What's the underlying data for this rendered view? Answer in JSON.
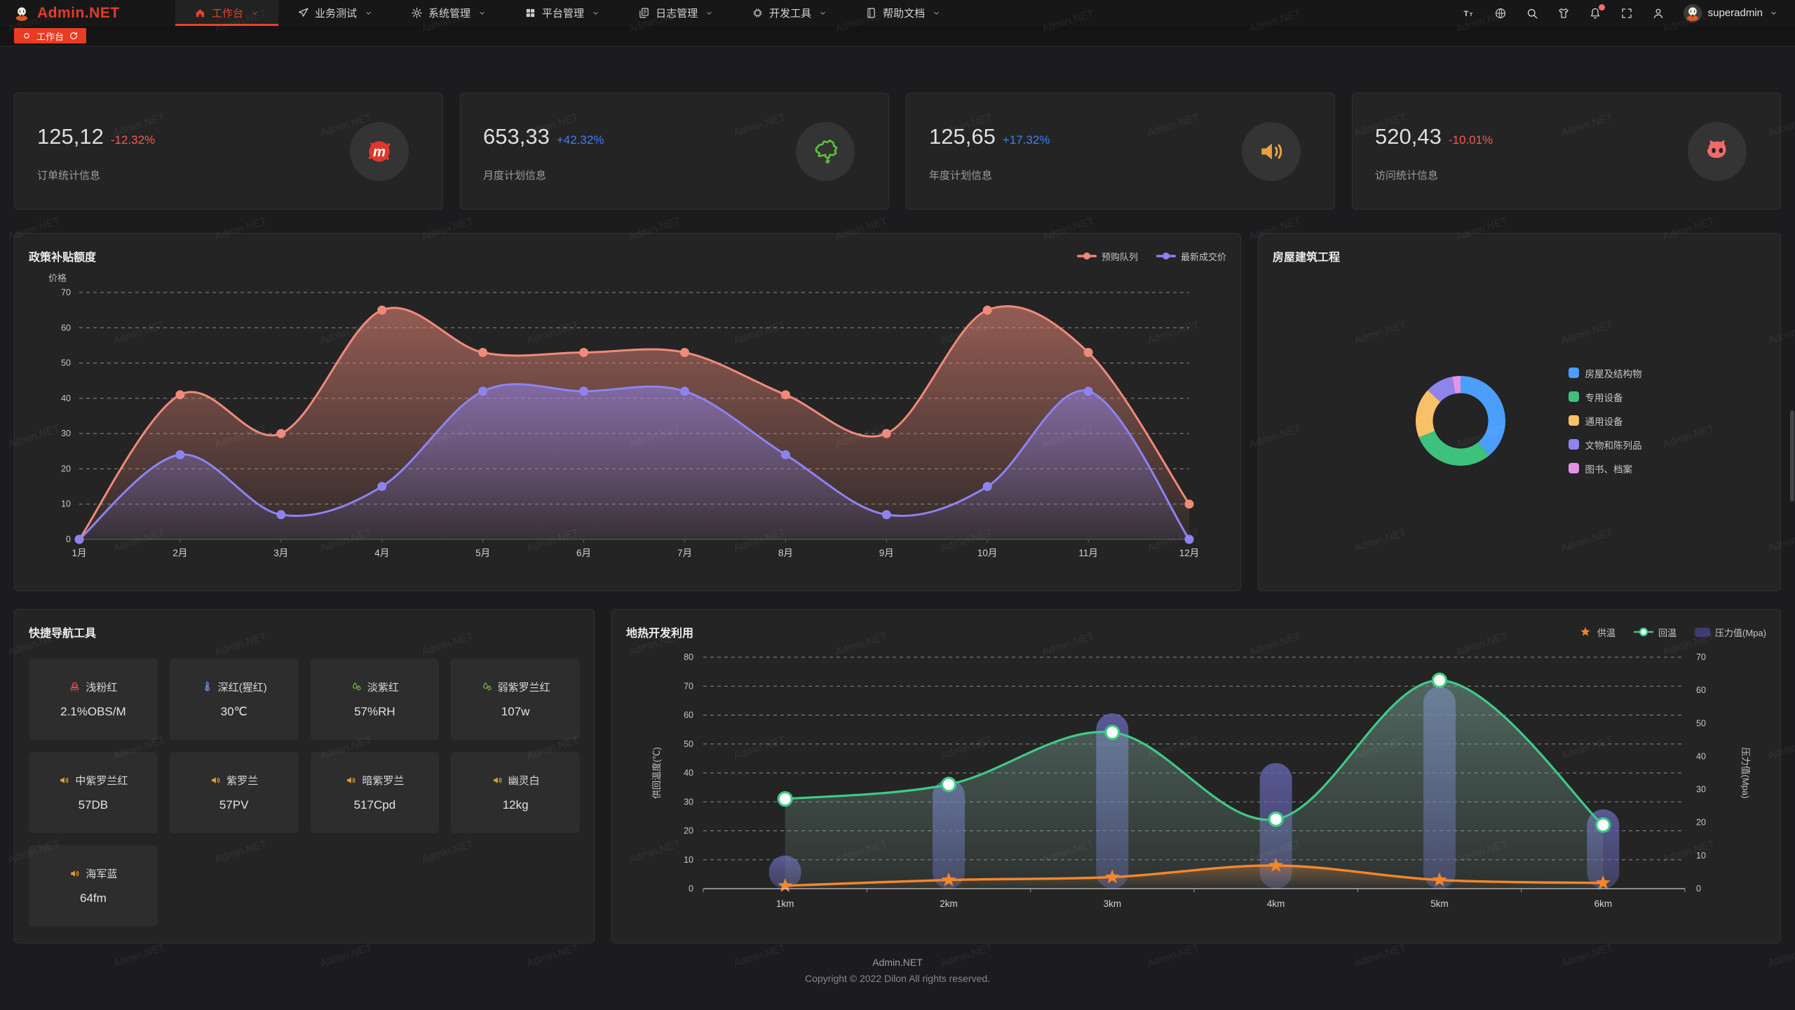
{
  "header": {
    "logo_text": "Admin.NET",
    "menu": [
      {
        "key": "workbench",
        "label": "工作台",
        "icon": "home-icon",
        "active": true
      },
      {
        "key": "business-test",
        "label": "业务测试",
        "icon": "send-icon",
        "active": false
      },
      {
        "key": "system-mgmt",
        "label": "系统管理",
        "icon": "gear-icon",
        "active": false
      },
      {
        "key": "platform-mgmt",
        "label": "平台管理",
        "icon": "grid-icon",
        "active": false
      },
      {
        "key": "log-mgmt",
        "label": "日志管理",
        "icon": "log-icon",
        "active": false
      },
      {
        "key": "dev-tools",
        "label": "开发工具",
        "icon": "chip-icon",
        "active": false
      },
      {
        "key": "help-docs",
        "label": "帮助文档",
        "icon": "book-icon",
        "active": false
      }
    ],
    "tools": [
      {
        "name": "font-size-icon",
        "badge": false
      },
      {
        "name": "language-icon",
        "badge": false
      },
      {
        "name": "search-icon",
        "badge": false
      },
      {
        "name": "theme-icon",
        "badge": false
      },
      {
        "name": "notification-icon",
        "badge": true
      },
      {
        "name": "fullscreen-icon",
        "badge": false
      },
      {
        "name": "user-icon",
        "badge": false
      }
    ],
    "username": "superadmin"
  },
  "tabbar": {
    "active_tab": "工作台"
  },
  "colors": {
    "accent": "#e8402c",
    "up": "#3f7ef7",
    "down": "#f25b52"
  },
  "stat_cards": [
    {
      "value": "125,12",
      "delta": "-12.32%",
      "trend": "down",
      "label": "订单统计信息",
      "icon": "meetup-icon",
      "icon_color": "#e0382c"
    },
    {
      "value": "653,33",
      "delta": "+42.32%",
      "trend": "up",
      "label": "月度计划信息",
      "icon": "china-map-icon",
      "icon_color": "#5cbf3c"
    },
    {
      "value": "125,65",
      "delta": "+17.32%",
      "trend": "up",
      "label": "年度计划信息",
      "icon": "speaker-icon",
      "icon_color": "#eaa23e"
    },
    {
      "value": "520,43",
      "delta": "-10.01%",
      "trend": "down",
      "label": "访问统计信息",
      "icon": "cat-icon",
      "icon_color": "#f06a6a"
    }
  ],
  "chart_data": [
    {
      "type": "line",
      "title": "政策补贴额度",
      "ylabel": "价格",
      "ylim": [
        0,
        70
      ],
      "y_ticks": [
        0,
        10,
        20,
        30,
        40,
        50,
        60,
        70
      ],
      "grid": "dashed",
      "legend_position": "top-right",
      "categories": [
        "1月",
        "2月",
        "3月",
        "4月",
        "5月",
        "6月",
        "7月",
        "8月",
        "9月",
        "10月",
        "11月",
        "12月"
      ],
      "series": [
        {
          "name": "预购队列",
          "color": "#f08a7a",
          "values": [
            0,
            41,
            30,
            65,
            53,
            53,
            53,
            41,
            30,
            65,
            53,
            10
          ]
        },
        {
          "name": "最新成交价",
          "color": "#8d83f0",
          "values": [
            0,
            24,
            7,
            15,
            42,
            42,
            42,
            24,
            7,
            15,
            42,
            0
          ]
        }
      ]
    },
    {
      "type": "pie",
      "title": "房屋建筑工程",
      "donut": true,
      "legend_position": "right",
      "segments": [
        {
          "name": "房屋及结构物",
          "value": 39,
          "color": "#4b9ffa"
        },
        {
          "name": "专用设备",
          "value": 30,
          "color": "#3fc17e"
        },
        {
          "name": "通用设备",
          "value": 18,
          "color": "#f9c06a"
        },
        {
          "name": "文物和陈列品",
          "value": 10,
          "color": "#8f83ee"
        },
        {
          "name": "图书、档案",
          "value": 3,
          "color": "#e393e6"
        }
      ]
    },
    {
      "type": "mixed",
      "title": "地热开发利用",
      "categories": [
        "1km",
        "2km",
        "3km",
        "4km",
        "5km",
        "6km"
      ],
      "ylabel_left": "供回温度(℃)",
      "ylabel_right": "压力值(Mpa)",
      "ylim_left": [
        0,
        80
      ],
      "ylim_right": [
        0,
        70
      ],
      "grid": "dashed",
      "legend_position": "top-right",
      "series": [
        {
          "name": "供温",
          "chart": "line",
          "marker": "star",
          "axis": "left",
          "color": "#f5862b",
          "values": [
            1,
            3,
            4,
            8,
            3,
            2
          ]
        },
        {
          "name": "回温",
          "chart": "line",
          "marker": "circle",
          "axis": "left",
          "color": "#3ecb86",
          "values": [
            31,
            36,
            54,
            24,
            72,
            22
          ]
        },
        {
          "name": "压力值(Mpa)",
          "chart": "bar",
          "axis": "right",
          "color": "#50508c",
          "values": [
            10,
            33,
            53,
            38,
            61,
            24
          ]
        }
      ]
    }
  ],
  "quick_nav": {
    "title": "快捷导航工具",
    "items": [
      {
        "icon": "siren-icon",
        "icon_color": "#e05656",
        "name": "浅粉红",
        "value": "2.1%OBS/M"
      },
      {
        "icon": "thermometer-icon",
        "icon_color": "#6f9ef0",
        "name": "深红(猩红)",
        "value": "30℃"
      },
      {
        "icon": "drops-icon",
        "icon_color": "#7ac23c",
        "name": "淡紫红",
        "value": "57%RH"
      },
      {
        "icon": "drops-icon",
        "icon_color": "#7ac23c",
        "name": "弱紫罗兰红",
        "value": "107w"
      },
      {
        "icon": "speaker-icon",
        "icon_color": "#e6a23c",
        "name": "中紫罗兰红",
        "value": "57DB"
      },
      {
        "icon": "speaker-icon",
        "icon_color": "#e6a23c",
        "name": "紫罗兰",
        "value": "57PV"
      },
      {
        "icon": "speaker-icon",
        "icon_color": "#e6a23c",
        "name": "暗紫罗兰",
        "value": "517Cpd"
      },
      {
        "icon": "speaker-icon",
        "icon_color": "#e6a23c",
        "name": "幽灵白",
        "value": "12kg"
      },
      {
        "icon": "speaker-icon",
        "icon_color": "#e6a23c",
        "name": "海军蓝",
        "value": "64fm"
      }
    ]
  },
  "footer": {
    "line1": "Admin.NET",
    "line2": "Copyright © 2022 Dilon All rights reserved."
  },
  "watermark_text": "Admin.NET"
}
